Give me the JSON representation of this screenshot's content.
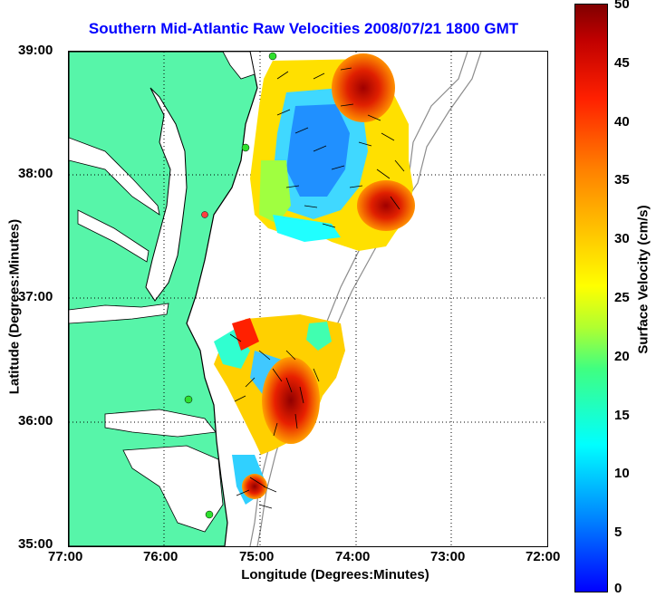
{
  "title": "Southern Mid-Atlantic Raw Velocities 2008/07/21 1800 GMT",
  "axes": {
    "xlabel": "Longitude (Degrees:Minutes)",
    "ylabel": "Latitude (Degrees:Minutes)",
    "xticks": [
      "77:00",
      "76:00",
      "75:00",
      "74:00",
      "73:00",
      "72:00"
    ],
    "yticks": [
      "39:00",
      "38:00",
      "37:00",
      "36:00",
      "35:00"
    ]
  },
  "colorbar": {
    "label": "Surface Velocity (cm/s)",
    "ticks": [
      "50",
      "45",
      "40",
      "35",
      "30",
      "25",
      "20",
      "15",
      "10",
      "5",
      "0"
    ],
    "range": [
      0,
      50
    ]
  },
  "colors": {
    "land": "#57f5a9",
    "water": "#ffffff",
    "coast": "#000000",
    "bathymetry": "#8c8c8c",
    "title": "#0000ff"
  }
}
